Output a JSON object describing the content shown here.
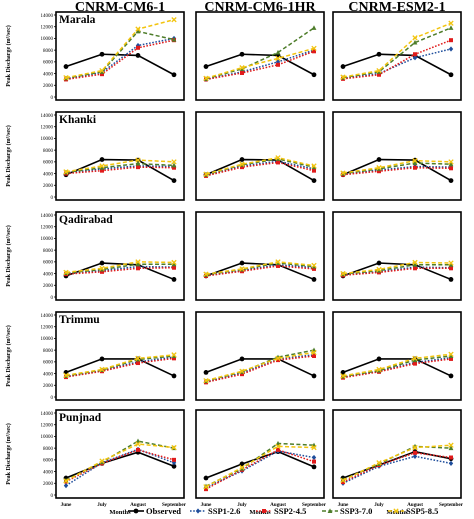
{
  "models": [
    "CNRM-CM6-1",
    "CNRM-CM6-1HR",
    "CNRM-ESM2-1"
  ],
  "stations": [
    "Marala",
    "Khanki",
    "Qadirabad",
    "Trimmu",
    "Punjnad"
  ],
  "ylabel": "Peak Discharge (m³/sec)",
  "xlabel": "Months",
  "months": [
    "June",
    "July",
    "August",
    "September"
  ],
  "yticks": [
    "0",
    "2000",
    "4000",
    "6000",
    "8000",
    "10000",
    "12000",
    "14000"
  ],
  "legend": [
    {
      "label": "Observed",
      "color": "#000000",
      "dash": "solid",
      "marker": "circle"
    },
    {
      "label": "SSP1-2.6",
      "color": "#1f4e9c",
      "dash": "dot",
      "marker": "diamond"
    },
    {
      "label": "SSP2-4.5",
      "color": "#e01b1b",
      "dash": "dot",
      "marker": "square"
    },
    {
      "label": "SSP3-7.0",
      "color": "#4e7d2a",
      "dash": "dash",
      "marker": "triangle"
    },
    {
      "label": "SSP5-8.5",
      "color": "#f2c40f",
      "dash": "dash",
      "marker": "cross"
    }
  ],
  "chart_data": {
    "type": "line",
    "categories": [
      "June",
      "July",
      "August",
      "September"
    ],
    "ylim": [
      0,
      14000
    ],
    "panels": [
      {
        "model": "CNRM-CM6-1",
        "station": "Marala",
        "series": [
          {
            "name": "Observed",
            "values": [
              5200,
              7300,
              7100,
              3800
            ]
          },
          {
            "name": "SSP1-2.6",
            "values": [
              3100,
              4200,
              8800,
              10000
            ]
          },
          {
            "name": "SSP2-4.5",
            "values": [
              3000,
              3900,
              8400,
              9700
            ]
          },
          {
            "name": "SSP3-7.0",
            "values": [
              3200,
              4300,
              11200,
              9800
            ]
          },
          {
            "name": "SSP5-8.5",
            "values": [
              3300,
              4500,
              11600,
              13200
            ]
          }
        ]
      },
      {
        "model": "CNRM-CM6-1HR",
        "station": "Marala",
        "series": [
          {
            "name": "Observed",
            "values": [
              5200,
              7300,
              7100,
              3800
            ]
          },
          {
            "name": "SSP1-2.6",
            "values": [
              3000,
              4300,
              6000,
              8000
            ]
          },
          {
            "name": "SSP2-4.5",
            "values": [
              3000,
              4100,
              5500,
              7800
            ]
          },
          {
            "name": "SSP3-7.0",
            "values": [
              3100,
              4800,
              7600,
              11800
            ]
          },
          {
            "name": "SSP5-8.5",
            "values": [
              3200,
              5000,
              6600,
              8300
            ]
          }
        ]
      },
      {
        "model": "CNRM-ESM2-1",
        "station": "Marala",
        "series": [
          {
            "name": "Observed",
            "values": [
              5200,
              7300,
              7100,
              3800
            ]
          },
          {
            "name": "SSP1-2.6",
            "values": [
              3200,
              4000,
              6700,
              8200
            ]
          },
          {
            "name": "SSP2-4.5",
            "values": [
              3100,
              3800,
              7300,
              9700
            ]
          },
          {
            "name": "SSP3-7.0",
            "values": [
              3300,
              4300,
              9300,
              11800
            ]
          },
          {
            "name": "SSP5-8.5",
            "values": [
              3400,
              4500,
              10100,
              12600
            ]
          }
        ]
      },
      {
        "model": "CNRM-CM6-1",
        "station": "Khanki",
        "series": [
          {
            "name": "Observed",
            "values": [
              3800,
              6400,
              6300,
              2800
            ]
          },
          {
            "name": "SSP1-2.6",
            "values": [
              4100,
              4800,
              5300,
              5200
            ]
          },
          {
            "name": "SSP2-4.5",
            "values": [
              4000,
              4500,
              5100,
              5000
            ]
          },
          {
            "name": "SSP3-7.0",
            "values": [
              4200,
              5000,
              5700,
              5400
            ]
          },
          {
            "name": "SSP5-8.5",
            "values": [
              4300,
              5300,
              6300,
              6000
            ]
          }
        ]
      },
      {
        "model": "CNRM-CM6-1HR",
        "station": "Khanki",
        "series": [
          {
            "name": "Observed",
            "values": [
              3800,
              6400,
              6300,
              2800
            ]
          },
          {
            "name": "SSP1-2.6",
            "values": [
              3700,
              5300,
              6100,
              4800
            ]
          },
          {
            "name": "SSP2-4.5",
            "values": [
              3600,
              5100,
              5900,
              4500
            ]
          },
          {
            "name": "SSP3-7.0",
            "values": [
              3800,
              5500,
              6500,
              5100
            ]
          },
          {
            "name": "SSP5-8.5",
            "values": [
              3900,
              5600,
              6700,
              5300
            ]
          }
        ]
      },
      {
        "model": "CNRM-ESM2-1",
        "station": "Khanki",
        "series": [
          {
            "name": "Observed",
            "values": [
              3800,
              6400,
              6300,
              2800
            ]
          },
          {
            "name": "SSP1-2.6",
            "values": [
              3900,
              4600,
              5200,
              5100
            ]
          },
          {
            "name": "SSP2-4.5",
            "values": [
              3800,
              4400,
              5000,
              4900
            ]
          },
          {
            "name": "SSP3-7.0",
            "values": [
              4000,
              4800,
              5800,
              5600
            ]
          },
          {
            "name": "SSP5-8.5",
            "values": [
              4100,
              5000,
              6200,
              6000
            ]
          }
        ]
      },
      {
        "model": "CNRM-CM6-1",
        "station": "Qadirabad",
        "series": [
          {
            "name": "Observed",
            "values": [
              3600,
              5800,
              5500,
              3000
            ]
          },
          {
            "name": "SSP1-2.6",
            "values": [
              4000,
              4500,
              5200,
              5100
            ]
          },
          {
            "name": "SSP2-4.5",
            "values": [
              3900,
              4300,
              4900,
              5000
            ]
          },
          {
            "name": "SSP3-7.0",
            "values": [
              4100,
              4700,
              5600,
              5600
            ]
          },
          {
            "name": "SSP5-8.5",
            "values": [
              4200,
              4900,
              6000,
              5900
            ]
          }
        ]
      },
      {
        "model": "CNRM-CM6-1HR",
        "station": "Qadirabad",
        "series": [
          {
            "name": "Observed",
            "values": [
              3600,
              5800,
              5500,
              3000
            ]
          },
          {
            "name": "SSP1-2.6",
            "values": [
              3700,
              4500,
              5500,
              5000
            ]
          },
          {
            "name": "SSP2-4.5",
            "values": [
              3600,
              4400,
              5300,
              4800
            ]
          },
          {
            "name": "SSP3-7.0",
            "values": [
              3800,
              4700,
              5800,
              5200
            ]
          },
          {
            "name": "SSP5-8.5",
            "values": [
              3900,
              4800,
              6000,
              5400
            ]
          }
        ]
      },
      {
        "model": "CNRM-ESM2-1",
        "station": "Qadirabad",
        "series": [
          {
            "name": "Observed",
            "values": [
              3600,
              5800,
              5500,
              3000
            ]
          },
          {
            "name": "SSP1-2.6",
            "values": [
              3800,
              4300,
              5100,
              5000
            ]
          },
          {
            "name": "SSP2-4.5",
            "values": [
              3700,
              4200,
              4900,
              4900
            ]
          },
          {
            "name": "SSP3-7.0",
            "values": [
              3900,
              4500,
              5500,
              5500
            ]
          },
          {
            "name": "SSP5-8.5",
            "values": [
              4000,
              4700,
              5900,
              5800
            ]
          }
        ]
      },
      {
        "model": "CNRM-CM6-1",
        "station": "Trimmu",
        "series": [
          {
            "name": "Observed",
            "values": [
              4200,
              6500,
              6500,
              3600
            ]
          },
          {
            "name": "SSP1-2.6",
            "values": [
              3500,
              4500,
              6000,
              6800
            ]
          },
          {
            "name": "SSP2-4.5",
            "values": [
              3400,
              4400,
              5800,
              6600
            ]
          },
          {
            "name": "SSP3-7.0",
            "values": [
              3600,
              4600,
              6400,
              7000
            ]
          },
          {
            "name": "SSP5-8.5",
            "values": [
              3700,
              4700,
              6600,
              7200
            ]
          }
        ]
      },
      {
        "model": "CNRM-CM6-1HR",
        "station": "Trimmu",
        "series": [
          {
            "name": "Observed",
            "values": [
              4200,
              6500,
              6500,
              3600
            ]
          },
          {
            "name": "SSP1-2.6",
            "values": [
              2600,
              4100,
              6500,
              7200
            ]
          },
          {
            "name": "SSP2-4.5",
            "values": [
              2500,
              3900,
              6300,
              7000
            ]
          },
          {
            "name": "SSP3-7.0",
            "values": [
              2700,
              4300,
              6800,
              8000
            ]
          },
          {
            "name": "SSP5-8.5",
            "values": [
              2800,
              4400,
              6600,
              7600
            ]
          }
        ]
      },
      {
        "model": "CNRM-ESM2-1",
        "station": "Trimmu",
        "series": [
          {
            "name": "Observed",
            "values": [
              4200,
              6500,
              6500,
              3600
            ]
          },
          {
            "name": "SSP1-2.6",
            "values": [
              3400,
              4400,
              5900,
              6700
            ]
          },
          {
            "name": "SSP2-4.5",
            "values": [
              3300,
              4300,
              5700,
              6500
            ]
          },
          {
            "name": "SSP3-7.0",
            "values": [
              3500,
              4500,
              6300,
              7000
            ]
          },
          {
            "name": "SSP5-8.5",
            "values": [
              3600,
              4700,
              6600,
              7300
            ]
          }
        ]
      },
      {
        "model": "CNRM-CM6-1",
        "station": "Punjnad",
        "series": [
          {
            "name": "Observed",
            "values": [
              2900,
              5400,
              7300,
              4900
            ]
          },
          {
            "name": "SSP1-2.6",
            "values": [
              1600,
              5500,
              7800,
              5500
            ]
          },
          {
            "name": "SSP2-4.5",
            "values": [
              2300,
              5400,
              7700,
              6000
            ]
          },
          {
            "name": "SSP3-7.0",
            "values": [
              2500,
              5600,
              9200,
              8000
            ]
          },
          {
            "name": "SSP5-8.5",
            "values": [
              2400,
              5800,
              8700,
              8100
            ]
          }
        ]
      },
      {
        "model": "CNRM-CM6-1HR",
        "station": "Punjnad",
        "series": [
          {
            "name": "Observed",
            "values": [
              2900,
              5300,
              7400,
              4800
            ]
          },
          {
            "name": "SSP1-2.6",
            "values": [
              1300,
              4100,
              7500,
              6400
            ]
          },
          {
            "name": "SSP2-4.5",
            "values": [
              1000,
              4300,
              7700,
              5700
            ]
          },
          {
            "name": "SSP3-7.0",
            "values": [
              1500,
              4500,
              8800,
              8500
            ]
          },
          {
            "name": "SSP5-8.5",
            "values": [
              1400,
              4700,
              8300,
              8100
            ]
          }
        ]
      },
      {
        "model": "CNRM-ESM2-1",
        "station": "Punjnad",
        "series": [
          {
            "name": "Observed",
            "values": [
              2900,
              5100,
              7400,
              6200
            ]
          },
          {
            "name": "SSP1-2.6",
            "values": [
              2000,
              4900,
              6600,
              5400
            ]
          },
          {
            "name": "SSP2-4.5",
            "values": [
              2200,
              5100,
              7200,
              6400
            ]
          },
          {
            "name": "SSP3-7.0",
            "values": [
              2600,
              5300,
              8300,
              8000
            ]
          },
          {
            "name": "SSP5-8.5",
            "values": [
              2500,
              5500,
              8100,
              8500
            ]
          }
        ]
      }
    ]
  }
}
